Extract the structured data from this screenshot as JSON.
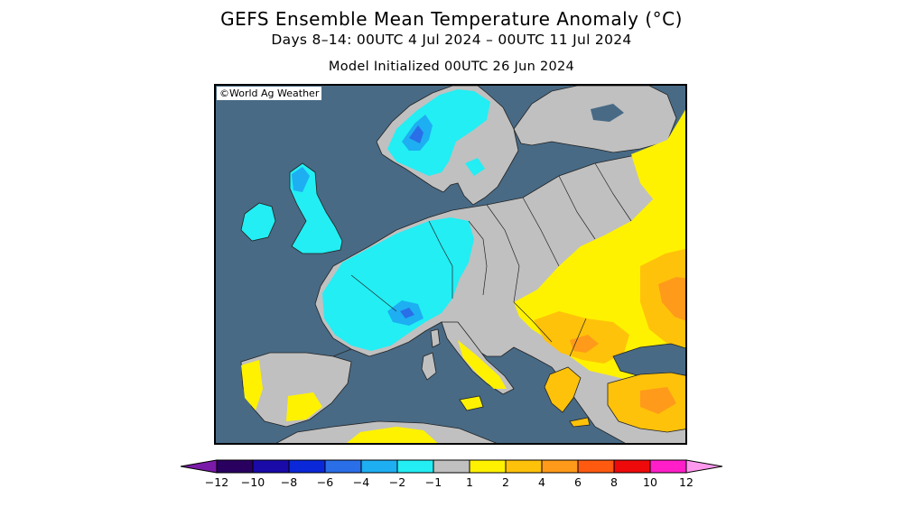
{
  "title": "GEFS Ensemble Mean Temperature Anomaly (°C)",
  "subtitle": "Days 8–14: 00UTC 4 Jul 2024 – 00UTC 11 Jul 2024",
  "init_line": "Model Initialized 00UTC 26 Jun 2024",
  "copyright": "©World Ag Weather",
  "colors": {
    "ocean": "#486a85",
    "land_neutral": "#c0c0c0",
    "border": "#222222"
  },
  "legend": {
    "ticks": [
      "−12",
      "−10",
      "−8",
      "−6",
      "−4",
      "−2",
      "−1",
      "1",
      "2",
      "4",
      "6",
      "8",
      "10",
      "12"
    ],
    "bins": [
      {
        "range": "-12 to -10",
        "color": "#290060"
      },
      {
        "range": "-10 to -8",
        "color": "#1a0aa8"
      },
      {
        "range": "-8 to -6",
        "color": "#0a28d8"
      },
      {
        "range": "-6 to -4",
        "color": "#2a6ee8"
      },
      {
        "range": "-4 to -2",
        "color": "#1eaef2"
      },
      {
        "range": "-2 to -1",
        "color": "#22eef4"
      },
      {
        "range": "-1 to 1",
        "color": "#c0c0c0"
      },
      {
        "range": "1 to 2",
        "color": "#fff200"
      },
      {
        "range": "2 to 4",
        "color": "#ffc20a"
      },
      {
        "range": "4 to 6",
        "color": "#ff9a1a"
      },
      {
        "range": "6 to 8",
        "color": "#ff5a10"
      },
      {
        "range": "8 to 10",
        "color": "#ee0a0a"
      },
      {
        "range": "10 to 12",
        "color": "#ff1ec8"
      }
    ],
    "low_extension_color": "#7a1aa8",
    "high_extension_color": "#ff99ee"
  }
}
